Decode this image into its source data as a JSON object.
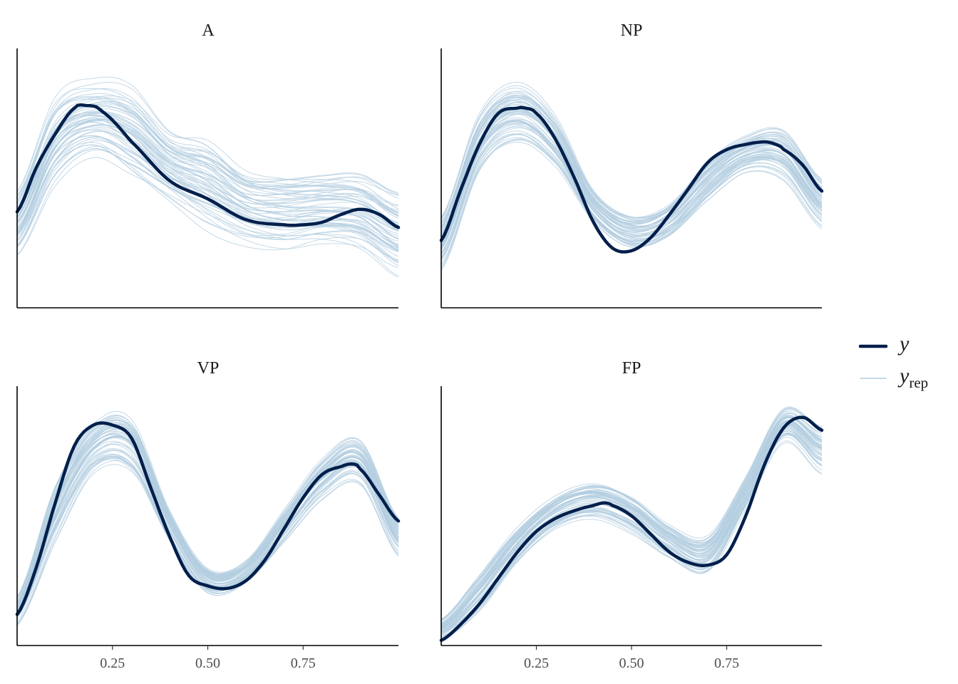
{
  "chart_data": {
    "type": "line",
    "colors": {
      "observed": "#011f4b",
      "replicated": "#b3cde0"
    },
    "legend": {
      "position": "right",
      "entries": [
        {
          "key": "y",
          "label": "y",
          "sub": ""
        },
        {
          "key": "yrep",
          "label": "y",
          "sub": "rep"
        }
      ]
    },
    "x_ticks": [
      {
        "value": 0.25,
        "label": "0.25"
      },
      {
        "value": 0.5,
        "label": "0.50"
      },
      {
        "value": 0.75,
        "label": "0.75"
      }
    ],
    "xlim": [
      0,
      1
    ],
    "ylim": [
      0,
      1
    ],
    "y_axis_labels": "none",
    "grid": false,
    "n_replicates": 60,
    "panels": [
      {
        "title": "A",
        "x_tick_labels": false,
        "y_observed": {
          "x": [
            0,
            0.05,
            0.1,
            0.15,
            0.18,
            0.22,
            0.3,
            0.4,
            0.5,
            0.6,
            0.7,
            0.75,
            0.8,
            0.85,
            0.9,
            0.95,
            1.0
          ],
          "y": [
            0.37,
            0.54,
            0.67,
            0.77,
            0.78,
            0.76,
            0.64,
            0.49,
            0.42,
            0.34,
            0.32,
            0.32,
            0.33,
            0.36,
            0.38,
            0.36,
            0.31
          ]
        },
        "y_rep_band": {
          "x": [
            0,
            0.1,
            0.2,
            0.3,
            0.4,
            0.5,
            0.6,
            0.7,
            0.8,
            0.9,
            1.0
          ],
          "low": [
            0.22,
            0.5,
            0.6,
            0.52,
            0.42,
            0.32,
            0.26,
            0.24,
            0.26,
            0.24,
            0.14
          ],
          "high": [
            0.45,
            0.8,
            0.87,
            0.85,
            0.69,
            0.66,
            0.54,
            0.52,
            0.52,
            0.52,
            0.45
          ]
        }
      },
      {
        "title": "NP",
        "x_tick_labels": false,
        "y_observed": {
          "x": [
            0,
            0.05,
            0.1,
            0.15,
            0.2,
            0.22,
            0.25,
            0.3,
            0.35,
            0.4,
            0.45,
            0.5,
            0.55,
            0.6,
            0.65,
            0.7,
            0.75,
            0.8,
            0.85,
            0.88,
            0.9,
            0.95,
            1.0
          ],
          "y": [
            0.26,
            0.45,
            0.63,
            0.75,
            0.77,
            0.77,
            0.75,
            0.65,
            0.5,
            0.33,
            0.23,
            0.22,
            0.27,
            0.36,
            0.46,
            0.56,
            0.61,
            0.63,
            0.64,
            0.63,
            0.61,
            0.55,
            0.45
          ]
        },
        "y_rep_band": {
          "x": [
            0,
            0.1,
            0.2,
            0.3,
            0.4,
            0.5,
            0.6,
            0.7,
            0.8,
            0.9,
            1.0
          ],
          "low": [
            0.16,
            0.54,
            0.65,
            0.55,
            0.33,
            0.22,
            0.26,
            0.4,
            0.52,
            0.5,
            0.32
          ],
          "high": [
            0.35,
            0.74,
            0.86,
            0.74,
            0.46,
            0.37,
            0.42,
            0.58,
            0.67,
            0.69,
            0.5
          ]
        }
      },
      {
        "title": "VP",
        "x_tick_labels": true,
        "y_observed": {
          "x": [
            0,
            0.05,
            0.1,
            0.15,
            0.2,
            0.25,
            0.3,
            0.35,
            0.4,
            0.45,
            0.5,
            0.55,
            0.6,
            0.65,
            0.7,
            0.75,
            0.8,
            0.85,
            0.88,
            0.9,
            0.95,
            1.0
          ],
          "y": [
            0.12,
            0.3,
            0.55,
            0.77,
            0.85,
            0.85,
            0.8,
            0.61,
            0.42,
            0.27,
            0.23,
            0.22,
            0.25,
            0.33,
            0.45,
            0.57,
            0.66,
            0.69,
            0.7,
            0.68,
            0.58,
            0.48
          ]
        },
        "y_rep_band": {
          "x": [
            0,
            0.1,
            0.2,
            0.3,
            0.4,
            0.5,
            0.6,
            0.7,
            0.8,
            0.9,
            1.0
          ],
          "low": [
            0.08,
            0.4,
            0.66,
            0.66,
            0.4,
            0.2,
            0.24,
            0.4,
            0.57,
            0.63,
            0.35
          ],
          "high": [
            0.18,
            0.6,
            0.84,
            0.86,
            0.52,
            0.3,
            0.33,
            0.52,
            0.71,
            0.78,
            0.48
          ]
        }
      },
      {
        "title": "FP",
        "x_tick_labels": true,
        "y_observed": {
          "x": [
            0,
            0.05,
            0.1,
            0.15,
            0.2,
            0.25,
            0.3,
            0.35,
            0.4,
            0.43,
            0.45,
            0.5,
            0.55,
            0.6,
            0.65,
            0.7,
            0.75,
            0.8,
            0.85,
            0.9,
            0.95,
            1.0
          ],
          "y": [
            0.02,
            0.08,
            0.16,
            0.26,
            0.36,
            0.44,
            0.49,
            0.52,
            0.54,
            0.55,
            0.54,
            0.5,
            0.43,
            0.36,
            0.32,
            0.31,
            0.35,
            0.5,
            0.7,
            0.84,
            0.88,
            0.83
          ]
        },
        "y_rep_band": {
          "x": [
            0,
            0.1,
            0.2,
            0.3,
            0.4,
            0.5,
            0.6,
            0.7,
            0.8,
            0.9,
            1.0
          ],
          "low": [
            0.02,
            0.13,
            0.32,
            0.45,
            0.49,
            0.43,
            0.33,
            0.27,
            0.52,
            0.78,
            0.66
          ],
          "high": [
            0.1,
            0.27,
            0.45,
            0.57,
            0.62,
            0.57,
            0.46,
            0.42,
            0.65,
            0.91,
            0.84
          ]
        }
      }
    ]
  }
}
